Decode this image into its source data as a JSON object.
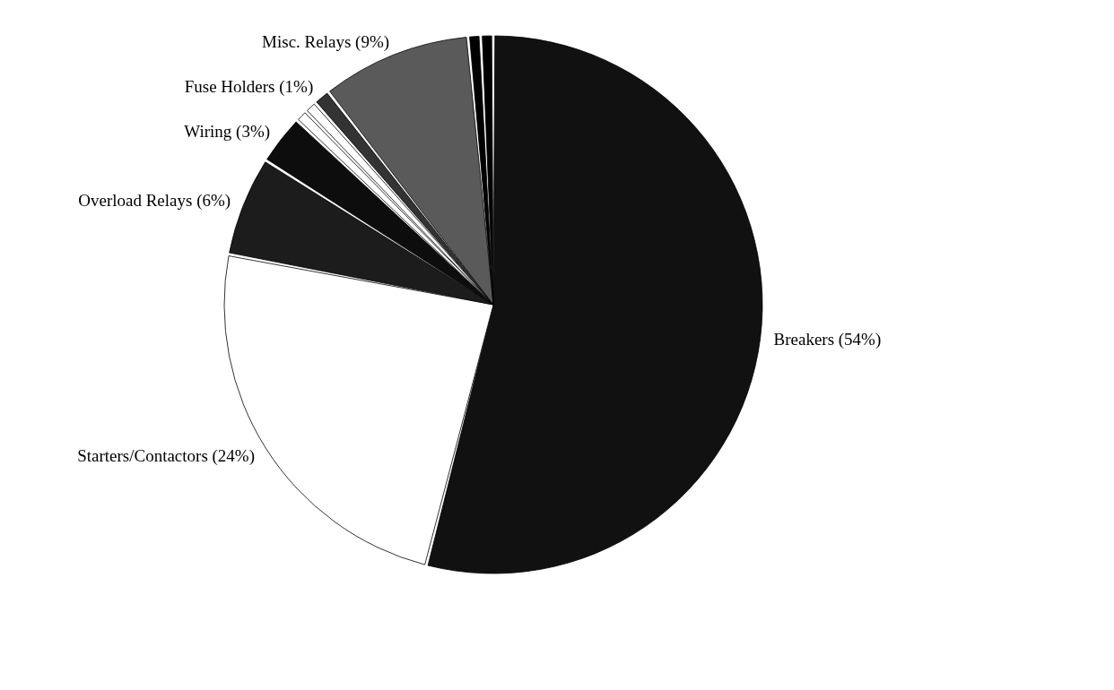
{
  "chart_data": {
    "type": "pie",
    "categories": [
      "Breakers",
      "Starters/Contactors",
      "Overload Relays",
      "Wiring",
      null,
      null,
      "Fuse Holders",
      "Misc. Relays",
      null,
      null
    ],
    "values": [
      54,
      24,
      6,
      3,
      0.75,
      0.75,
      1,
      9,
      0.75,
      0.75
    ],
    "value_labels": [
      "(54%)",
      "(24%)",
      "(6%)",
      "(3%)",
      null,
      null,
      "(1%)",
      "(9%)",
      null,
      null
    ],
    "colors": [
      "#111111",
      "#ffffff",
      "#1c1c1c",
      "#0d0d0d",
      "#ffffff",
      "#ffffff",
      "#333333",
      "#5a5a5a",
      "#000000",
      "#000000"
    ],
    "legend": false
  }
}
